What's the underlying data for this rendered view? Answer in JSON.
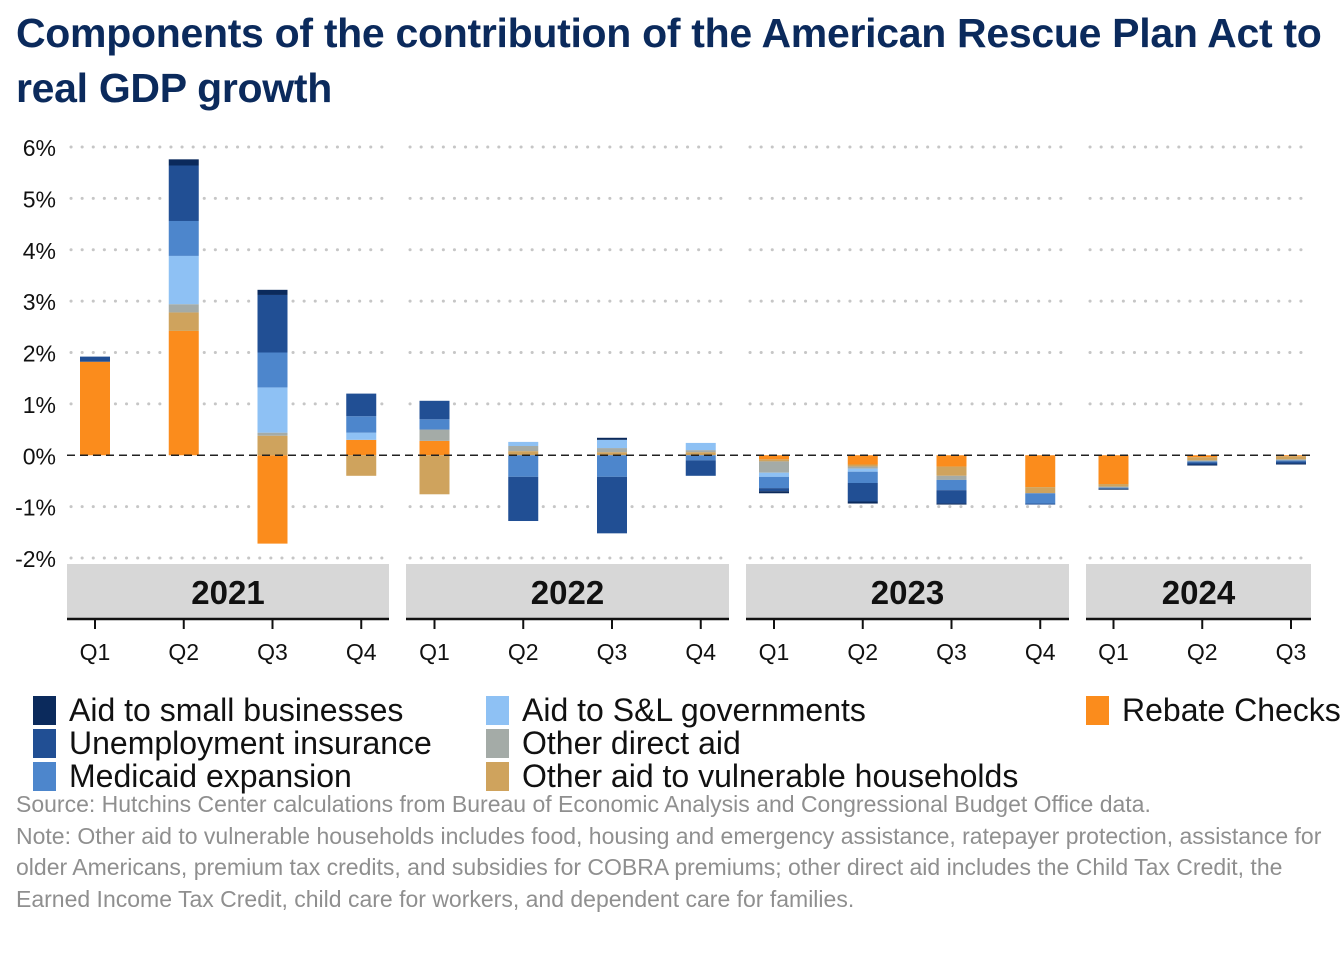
{
  "title": "Components of the contribution of the American Rescue Plan Act to real GDP growth",
  "chart_data": {
    "type": "bar",
    "stacked": true,
    "ylim": [
      -2,
      6
    ],
    "yticks": [
      -2,
      -1,
      0,
      1,
      2,
      3,
      4,
      5,
      6
    ],
    "ytick_labels": [
      "-2%",
      "-1%",
      "0%",
      "1%",
      "2%",
      "3%",
      "4%",
      "5%",
      "6%"
    ],
    "grid": "horizontal dotted",
    "groups": [
      {
        "label": "2021",
        "quarters": [
          "Q1",
          "Q2",
          "Q3",
          "Q4"
        ]
      },
      {
        "label": "2022",
        "quarters": [
          "Q1",
          "Q2",
          "Q3",
          "Q4"
        ]
      },
      {
        "label": "2023",
        "quarters": [
          "Q1",
          "Q2",
          "Q3",
          "Q4"
        ]
      },
      {
        "label": "2024",
        "quarters": [
          "Q1",
          "Q2",
          "Q3"
        ]
      }
    ],
    "categories": [
      "2021 Q1",
      "2021 Q2",
      "2021 Q3",
      "2021 Q4",
      "2022 Q1",
      "2022 Q2",
      "2022 Q3",
      "2022 Q4",
      "2023 Q1",
      "2023 Q2",
      "2023 Q3",
      "2023 Q4",
      "2024 Q1",
      "2024 Q2",
      "2024 Q3"
    ],
    "series": [
      {
        "name": "Rebate Checks",
        "color": "#fb8c1c",
        "values": [
          1.82,
          2.42,
          -1.72,
          0.3,
          0.28,
          0.0,
          0.0,
          0.0,
          -0.08,
          -0.18,
          -0.22,
          -0.62,
          -0.56,
          -0.04,
          -0.02
        ]
      },
      {
        "name": "Other aid to vulnerable households",
        "color": "#cfa35d",
        "values": [
          0.0,
          0.36,
          0.38,
          -0.4,
          -0.76,
          0.08,
          0.06,
          0.06,
          -0.04,
          -0.04,
          -0.18,
          -0.12,
          -0.05,
          -0.06,
          -0.06
        ]
      },
      {
        "name": "Other direct aid",
        "color": "#a4aba7",
        "values": [
          0.0,
          0.16,
          0.06,
          0.0,
          0.22,
          0.1,
          0.08,
          0.04,
          -0.22,
          -0.04,
          -0.08,
          0.0,
          -0.02,
          -0.02,
          -0.02
        ]
      },
      {
        "name": "Aid to S&L governments",
        "color": "#8ec1f4",
        "values": [
          0.0,
          0.94,
          0.88,
          0.14,
          0.0,
          0.08,
          0.16,
          0.14,
          -0.08,
          -0.06,
          0.0,
          0.0,
          0.0,
          0.0,
          0.0
        ]
      },
      {
        "name": "Medicaid expansion",
        "color": "#4d86cc",
        "values": [
          0.0,
          0.68,
          0.68,
          0.32,
          0.2,
          -0.42,
          -0.42,
          -0.1,
          -0.22,
          -0.22,
          -0.2,
          -0.2,
          -0.02,
          -0.02,
          -0.02
        ]
      },
      {
        "name": "Unemployment insurance",
        "color": "#214f94",
        "values": [
          0.1,
          1.08,
          1.12,
          0.44,
          0.36,
          -0.86,
          -1.1,
          -0.3,
          -0.06,
          -0.36,
          -0.26,
          -0.02,
          0.0,
          -0.04,
          -0.04
        ]
      },
      {
        "name": "Aid to small businesses",
        "color": "#0b2a5c",
        "values": [
          0.0,
          0.12,
          0.1,
          0.0,
          0.0,
          0.0,
          0.04,
          0.0,
          -0.04,
          -0.04,
          -0.02,
          0.0,
          -0.02,
          -0.02,
          -0.02
        ]
      }
    ]
  },
  "legend": {
    "columns": [
      [
        "Aid to small businesses",
        "Unemployment insurance",
        "Medicaid expansion"
      ],
      [
        "Aid to S&L governments",
        "Other direct aid",
        "Other aid to vulnerable households"
      ],
      [
        "Rebate Checks"
      ]
    ]
  },
  "notes": {
    "source": "Source: Hutchins Center calculations from Bureau of Economic Analysis and Congressional Budget Office data.",
    "note": "Note: Other aid to vulnerable households includes food, housing and emergency assistance, ratepayer protection, assistance for older Americans, premium tax credits, and subsidies for COBRA premiums; other direct aid includes the Child Tax Credit, the Earned Income Tax Credit, child care for workers, and dependent care for families."
  }
}
